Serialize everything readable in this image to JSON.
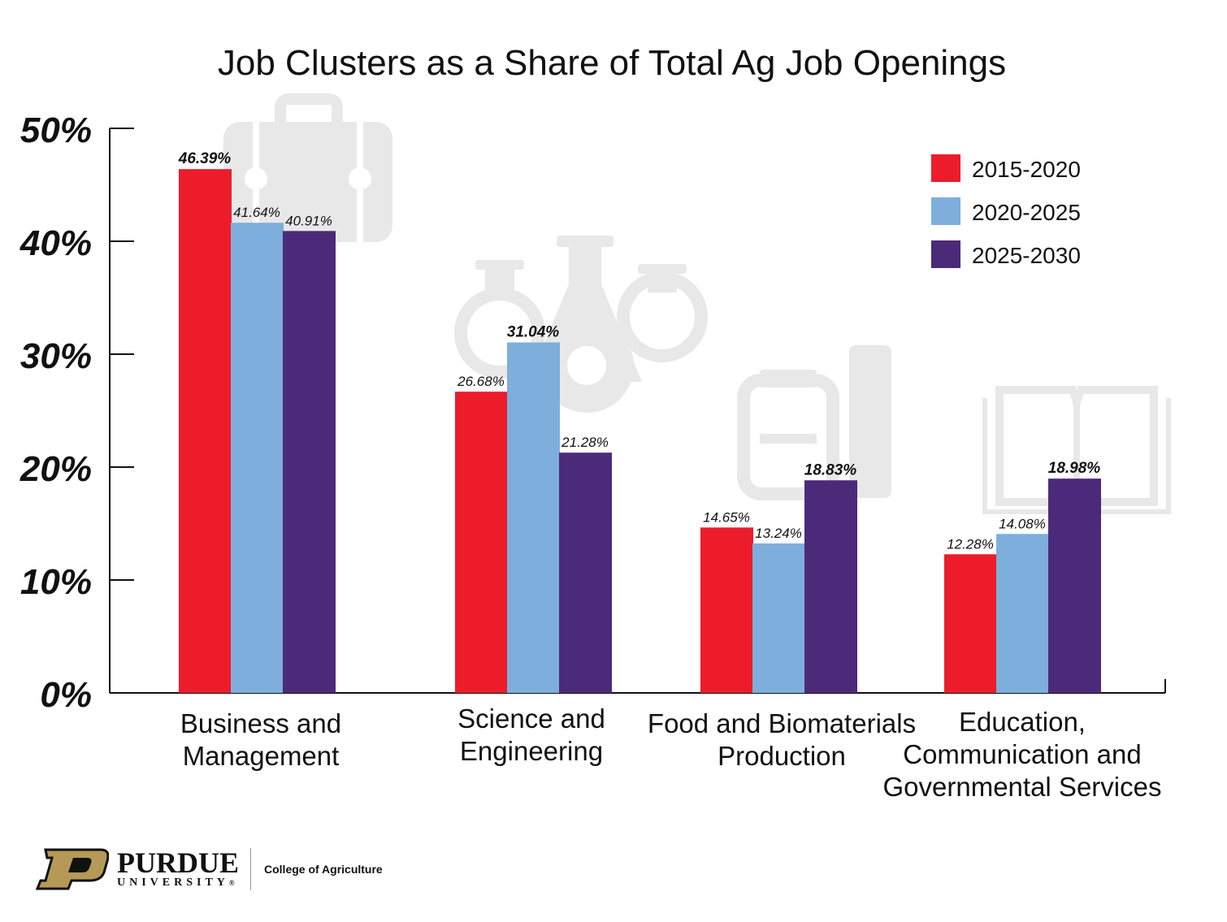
{
  "chart_data": {
    "type": "bar",
    "title": "Job Clusters as a Share of Total Ag Job Openings",
    "categories": [
      [
        "Business and",
        "Management"
      ],
      [
        "Science and",
        "Engineering"
      ],
      [
        "Food and Biomaterials",
        "Production"
      ],
      [
        "Education,",
        "Communication and",
        "Governmental Services"
      ]
    ],
    "series": [
      {
        "name": "2015-2020",
        "color": "#ec1c2b",
        "values": [
          46.39,
          26.68,
          14.65,
          12.28
        ]
      },
      {
        "name": "2020-2025",
        "color": "#7eaedc",
        "values": [
          41.64,
          31.04,
          13.24,
          14.08
        ]
      },
      {
        "name": "2025-2030",
        "color": "#4c2a7a",
        "values": [
          40.91,
          21.28,
          18.83,
          18.98
        ]
      }
    ],
    "data_labels": [
      [
        "46.39%",
        "41.64%",
        "40.91%"
      ],
      [
        "26.68%",
        "31.04%",
        "21.28%"
      ],
      [
        "14.65%",
        "13.24%",
        "18.83%"
      ],
      [
        "12.28%",
        "14.08%",
        "18.98%"
      ]
    ],
    "emphasized_labels": [
      [
        true,
        false,
        false
      ],
      [
        false,
        true,
        false
      ],
      [
        false,
        false,
        true
      ],
      [
        false,
        false,
        true
      ]
    ],
    "yticks": [
      "0%",
      "10%",
      "20%",
      "30%",
      "40%",
      "50%"
    ],
    "ylim": [
      0,
      50
    ],
    "legend_position": "top-right",
    "grid": false,
    "background_icons": [
      "briefcase-icon",
      "lab-flasks-gear-icon",
      "factory-machine-icon",
      "open-book-icon"
    ]
  },
  "footer": {
    "brand_name": "PURDUE",
    "brand_sub": "UNIVERSITY",
    "registered_mark": "®",
    "college": "College of Agriculture"
  }
}
